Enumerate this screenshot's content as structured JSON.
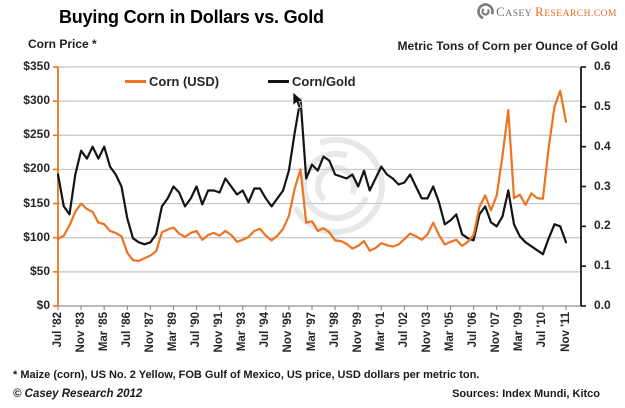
{
  "header": {
    "title": "Buying Corn in Dollars vs. Gold",
    "brand": {
      "casey_initial": "C",
      "casey_rest": "ASEY",
      "research_initial": "R",
      "research_rest": "ESEARCH.COM"
    }
  },
  "palette": {
    "corn_orange": "#ED7422",
    "ratio_black": "#141414",
    "grid_gray": "#C6C6C6",
    "axis_gray": "#8F8F8F",
    "watermark_gray": "#CDCDCD",
    "logo_gray": "#6E6E6E",
    "logo_orange": "#E66A24"
  },
  "footer": {
    "footnote": "* Maize (corn), US No. 2 Yellow, FOB Gulf of Mexico, US price, USD dollars per metric ton.",
    "copyright": "© Casey Research 2012",
    "sources": "Sources: Index Mundi, Kitco"
  },
  "chart_data": {
    "type": "line",
    "title": "Buying Corn in Dollars vs. Gold",
    "x_unit": "one point per 4 months, Jul 1982 through Nov 2011",
    "x_tick_every": 4,
    "x_tick_labels": [
      "Jul '82",
      "Nov '83",
      "Mar '85",
      "Jul '86",
      "Nov '87",
      "Mar '89",
      "Jul '90",
      "Nov '91",
      "Mar '93",
      "Jul '94",
      "Nov '95",
      "Mar '97",
      "Jul '98",
      "Nov '99",
      "Mar '01",
      "Jul '02",
      "Nov '03",
      "Mar '05",
      "Jul '06",
      "Nov '07",
      "Mar '09",
      "Jul '10",
      "Nov '11"
    ],
    "left_axis": {
      "title": "Corn Price *",
      "range": [
        0,
        350
      ],
      "tick_step": 50,
      "tick_labels": [
        "$0",
        "$50",
        "$100",
        "$150",
        "$200",
        "$250",
        "$300",
        "$350"
      ]
    },
    "right_axis": {
      "title": "Metric Tons of Corn per Ounce of Gold",
      "range": [
        0,
        0.6
      ],
      "tick_step": 0.1,
      "tick_labels": [
        "0.0",
        "0.1",
        "0.2",
        "0.3",
        "0.4",
        "0.5",
        "0.6"
      ]
    },
    "grid": true,
    "legend_position": "top-inside",
    "series": [
      {
        "name": "Corn/Gold",
        "axis": "right",
        "color": "#141414",
        "values": [
          0.33,
          0.25,
          0.23,
          0.33,
          0.39,
          0.37,
          0.4,
          0.37,
          0.4,
          0.35,
          0.33,
          0.3,
          0.22,
          0.17,
          0.16,
          0.155,
          0.16,
          0.18,
          0.25,
          0.27,
          0.3,
          0.285,
          0.25,
          0.27,
          0.3,
          0.255,
          0.29,
          0.29,
          0.285,
          0.32,
          0.3,
          0.28,
          0.29,
          0.26,
          0.295,
          0.295,
          0.27,
          0.25,
          0.27,
          0.29,
          0.34,
          0.435,
          0.52,
          0.32,
          0.355,
          0.34,
          0.375,
          0.365,
          0.33,
          0.325,
          0.32,
          0.33,
          0.3,
          0.34,
          0.29,
          0.32,
          0.35,
          0.33,
          0.32,
          0.305,
          0.31,
          0.33,
          0.3,
          0.27,
          0.27,
          0.3,
          0.26,
          0.205,
          0.215,
          0.23,
          0.18,
          0.17,
          0.165,
          0.23,
          0.25,
          0.21,
          0.2,
          0.225,
          0.29,
          0.205,
          0.175,
          0.16,
          0.15,
          0.14,
          0.13,
          0.17,
          0.205,
          0.2,
          0.16
        ]
      },
      {
        "name": "Corn (USD)",
        "axis": "left",
        "color": "#ED7422",
        "values": [
          98,
          103,
          118,
          138,
          150,
          142,
          138,
          122,
          120,
          110,
          107,
          102,
          78,
          67,
          66,
          70,
          74,
          80,
          108,
          112,
          115,
          106,
          101,
          107,
          110,
          97,
          104,
          107,
          103,
          110,
          104,
          94,
          97,
          101,
          110,
          113,
          103,
          96,
          103,
          113,
          132,
          172,
          200,
          122,
          124,
          110,
          114,
          108,
          96,
          95,
          91,
          84,
          88,
          95,
          81,
          85,
          92,
          89,
          87,
          90,
          98,
          106,
          102,
          97,
          105,
          122,
          104,
          90,
          94,
          97,
          88,
          94,
          104,
          145,
          162,
          140,
          162,
          220,
          287,
          158,
          163,
          148,
          165,
          158,
          157,
          232,
          292,
          315,
          270
        ]
      }
    ]
  }
}
